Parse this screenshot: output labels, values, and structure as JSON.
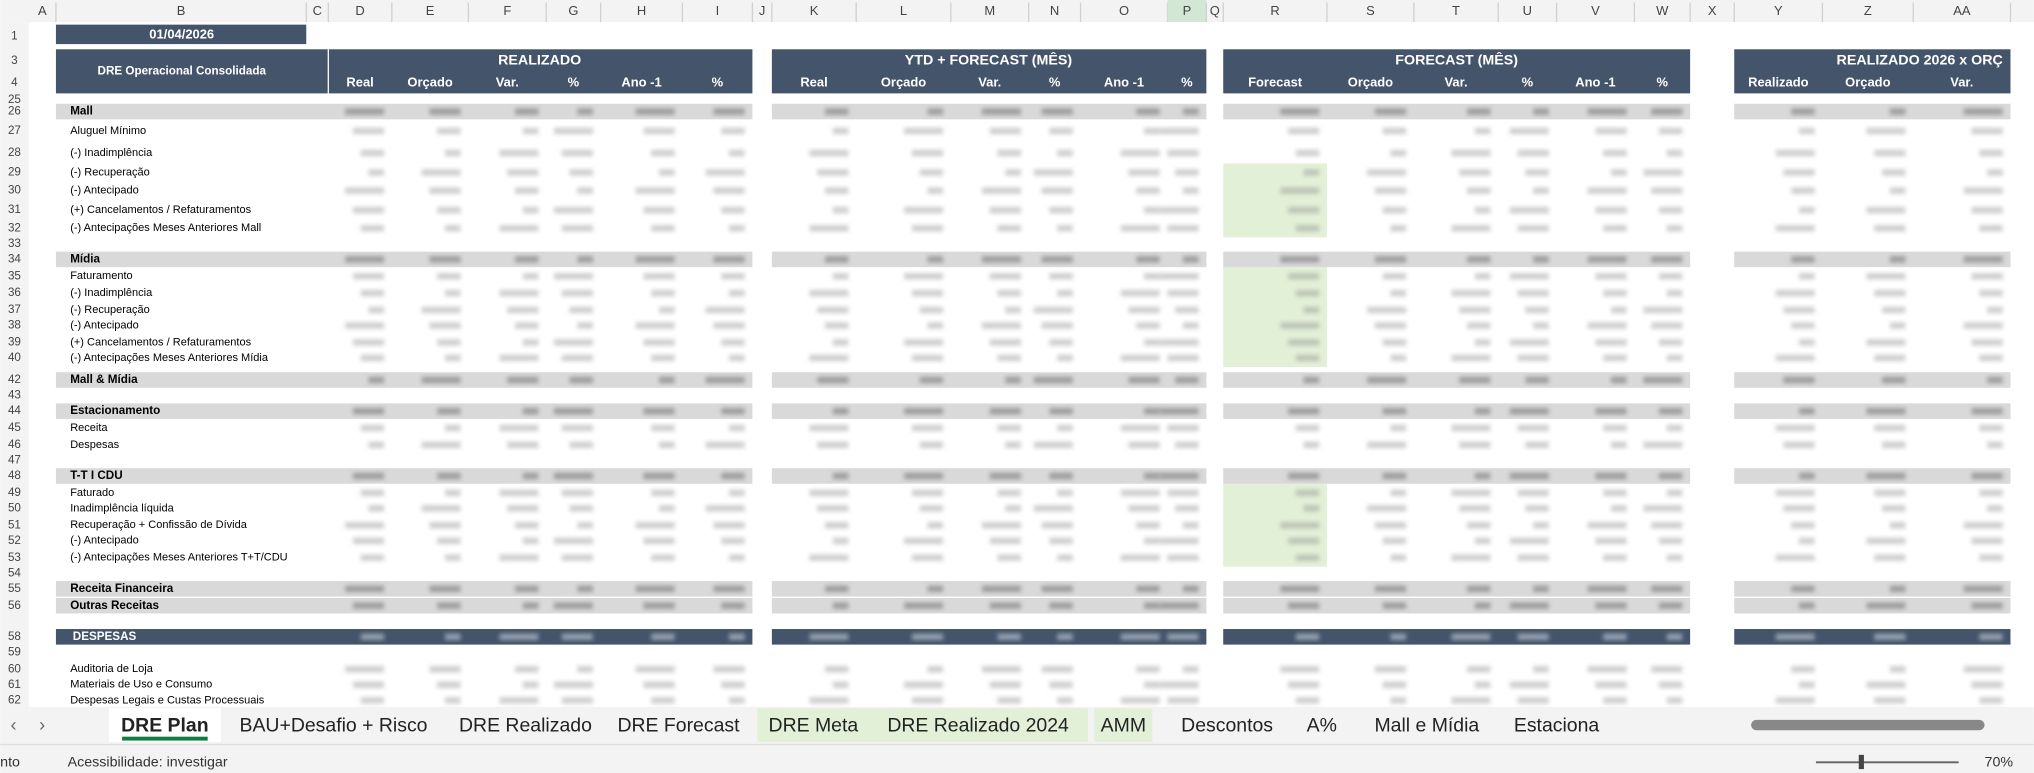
{
  "sheet": {
    "date": "01/04/2026",
    "columns": [
      "A",
      "B",
      "C",
      "D",
      "E",
      "F",
      "G",
      "H",
      "I",
      "J",
      "K",
      "L",
      "M",
      "N",
      "O",
      "P",
      "Q",
      "R",
      "S",
      "T",
      "U",
      "V",
      "W",
      "X",
      "Y",
      "Z",
      "AA"
    ],
    "header": {
      "row_numbers": [
        "1",
        "3",
        "4"
      ],
      "corner": "DRE Operacional Consolidada",
      "groups": [
        {
          "title": "REALIZADO",
          "subs": [
            "Real",
            "Orçado",
            "Var.",
            "%",
            "Ano -1",
            "%"
          ]
        },
        {
          "title": "YTD + FORECAST (MÊS)",
          "subs": [
            "Real",
            "Orçado",
            "Var.",
            "%",
            "Ano -1",
            "%"
          ]
        },
        {
          "title": "FORECAST (MÊS)",
          "subs": [
            "Forecast",
            "Orçado",
            "Var.",
            "%",
            "Ano -1",
            "%"
          ]
        },
        {
          "title": "REALIZADO 2026 x ORÇ",
          "subs": [
            "Realizado",
            "Orçado",
            "Var."
          ]
        }
      ]
    },
    "rows": [
      {
        "n": "25",
        "label": null,
        "kind": "blank"
      },
      {
        "n": "26",
        "label": "Mall",
        "kind": "section"
      },
      {
        "n": "27",
        "label": "Aluguel Mínimo",
        "kind": "item"
      },
      {
        "n": "28",
        "label": "(-) Inadimplência",
        "kind": "item"
      },
      {
        "n": "29",
        "label": "(-) Recuperação",
        "kind": "item"
      },
      {
        "n": "30",
        "label": "(-) Antecipado",
        "kind": "item"
      },
      {
        "n": "31",
        "label": "(+) Cancelamentos / Refaturamentos",
        "kind": "item"
      },
      {
        "n": "32",
        "label": "(-) Antecipações Meses Anteriores Mall",
        "kind": "item"
      },
      {
        "n": "33",
        "label": null,
        "kind": "blank"
      },
      {
        "n": "34",
        "label": "Mídia",
        "kind": "section"
      },
      {
        "n": "35",
        "label": "Faturamento",
        "kind": "item"
      },
      {
        "n": "36",
        "label": "(-) Inadimplência",
        "kind": "item"
      },
      {
        "n": "37",
        "label": "(-) Recuperação",
        "kind": "item"
      },
      {
        "n": "38",
        "label": "(-) Antecipado",
        "kind": "item"
      },
      {
        "n": "39",
        "label": "(+) Cancelamentos / Refaturamentos",
        "kind": "item"
      },
      {
        "n": "40",
        "label": "(-) Antecipações Meses Anteriores Mídia",
        "kind": "item"
      },
      {
        "n": "42",
        "label": "Mall & Mídia",
        "kind": "section"
      },
      {
        "n": "43",
        "label": null,
        "kind": "blank"
      },
      {
        "n": "44",
        "label": "Estacionamento",
        "kind": "section"
      },
      {
        "n": "45",
        "label": "Receita",
        "kind": "item"
      },
      {
        "n": "46",
        "label": "Despesas",
        "kind": "item"
      },
      {
        "n": "47",
        "label": null,
        "kind": "blank"
      },
      {
        "n": "48",
        "label": "T-T I CDU",
        "kind": "section"
      },
      {
        "n": "49",
        "label": "Faturado",
        "kind": "item"
      },
      {
        "n": "50",
        "label": "Inadimplência líquida",
        "kind": "item"
      },
      {
        "n": "51",
        "label": "Recuperação + Confissão de Dívida",
        "kind": "item"
      },
      {
        "n": "52",
        "label": "(-) Antecipado",
        "kind": "item"
      },
      {
        "n": "53",
        "label": "(-) Antecipações Meses Anteriores T+T/CDU",
        "kind": "item"
      },
      {
        "n": "54",
        "label": null,
        "kind": "blank"
      },
      {
        "n": "55",
        "label": "Receita Financeira",
        "kind": "section"
      },
      {
        "n": "56",
        "label": "Outras Receitas",
        "kind": "section"
      },
      {
        "n": "58",
        "label": "DESPESAS",
        "kind": "dark"
      },
      {
        "n": "59",
        "label": null,
        "kind": "blank"
      },
      {
        "n": "60",
        "label": "Auditoria de Loja",
        "kind": "item"
      },
      {
        "n": "61",
        "label": "Materiais de Uso e Consumo",
        "kind": "item"
      },
      {
        "n": "62",
        "label": "Despesas Legais e Custas Processuais",
        "kind": "item"
      }
    ]
  },
  "tabs": [
    {
      "label": "DRE Plan",
      "active": true
    },
    {
      "label": "BAU+Desafio + Risco"
    },
    {
      "label": "DRE Realizado"
    },
    {
      "label": "DRE Forecast"
    },
    {
      "label": "DRE Meta",
      "green": true
    },
    {
      "label": "DRE Realizado 2024",
      "green": true
    },
    {
      "label": "AMM",
      "green": true
    },
    {
      "label": "Descontos"
    },
    {
      "label": "A%"
    },
    {
      "label": "Mall e Mídia"
    },
    {
      "label": "Estaciona"
    }
  ],
  "status": {
    "left": "nto",
    "accessibility": "Acessibilidade: investigar",
    "zoom": "70%"
  }
}
